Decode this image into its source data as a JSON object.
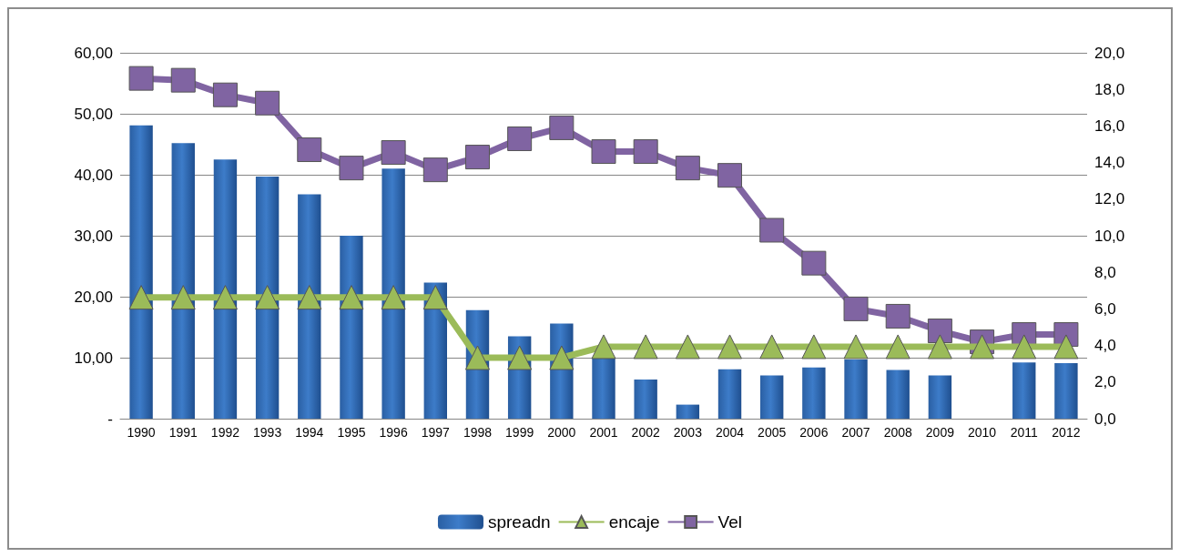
{
  "chart_data": {
    "type": "bar",
    "categories": [
      "1990",
      "1991",
      "1992",
      "1993",
      "1994",
      "1995",
      "1996",
      "1997",
      "1998",
      "1999",
      "2000",
      "2001",
      "2002",
      "2003",
      "2004",
      "2005",
      "2006",
      "2007",
      "2008",
      "2009",
      "2010",
      "2011",
      "2012"
    ],
    "series": [
      {
        "name": "spreadn",
        "color": "#3d7cc9",
        "values": [
          48.1,
          45.2,
          42.5,
          39.7,
          36.8,
          30.0,
          41,
          22.3,
          17.8,
          13.5,
          15.6,
          10,
          6.4,
          2.3,
          8.1,
          7.1,
          8.4,
          9.7,
          8.0,
          7.1,
          null,
          9.2,
          9.1
        ]
      },
      {
        "name": "encaje",
        "type": "line",
        "color": "#9bbb59",
        "marker": "triangle",
        "values": [
          19.9,
          19.9,
          19.9,
          19.9,
          19.9,
          19.9,
          19.9,
          19.9,
          10,
          10,
          10,
          11.8,
          11.8,
          11.8,
          11.8,
          11.8,
          11.8,
          11.8,
          11.8,
          11.8,
          11.8,
          11.8,
          11.8
        ]
      },
      {
        "name": "Vel",
        "type": "line",
        "axis": "y2",
        "color": "#8064a2",
        "marker": "square",
        "values": [
          18.6,
          18.5,
          17.7,
          17.25,
          14.7,
          13.7,
          14.55,
          13.6,
          14.3,
          15.3,
          15.9,
          14.6,
          14.6,
          13.7,
          13.3,
          10.3,
          8.5,
          6.0,
          5.6,
          4.8,
          4.2,
          4.6,
          4.6
        ]
      }
    ],
    "ylim": [
      0,
      60
    ],
    "yticks": [
      {
        "value": 0,
        "label": "-"
      },
      {
        "value": 10,
        "label": "10,00"
      },
      {
        "value": 20,
        "label": "20,00"
      },
      {
        "value": 30,
        "label": "30,00"
      },
      {
        "value": 40,
        "label": "40,00"
      },
      {
        "value": 50,
        "label": "50,00"
      },
      {
        "value": 60,
        "label": "60,00"
      }
    ],
    "y2lim": [
      0,
      20
    ],
    "y2ticks": [
      {
        "value": 0,
        "label": "0,0"
      },
      {
        "value": 2,
        "label": "2,0"
      },
      {
        "value": 4,
        "label": "4,0"
      },
      {
        "value": 6,
        "label": "6,0"
      },
      {
        "value": 8,
        "label": "8,0"
      },
      {
        "value": 10,
        "label": "10,0"
      },
      {
        "value": 12,
        "label": "12,0"
      },
      {
        "value": 14,
        "label": "14,0"
      },
      {
        "value": 16,
        "label": "16,0"
      },
      {
        "value": 18,
        "label": "18,0"
      },
      {
        "value": 20,
        "label": "20,0"
      }
    ],
    "grid": "y",
    "legend": "bottom"
  }
}
